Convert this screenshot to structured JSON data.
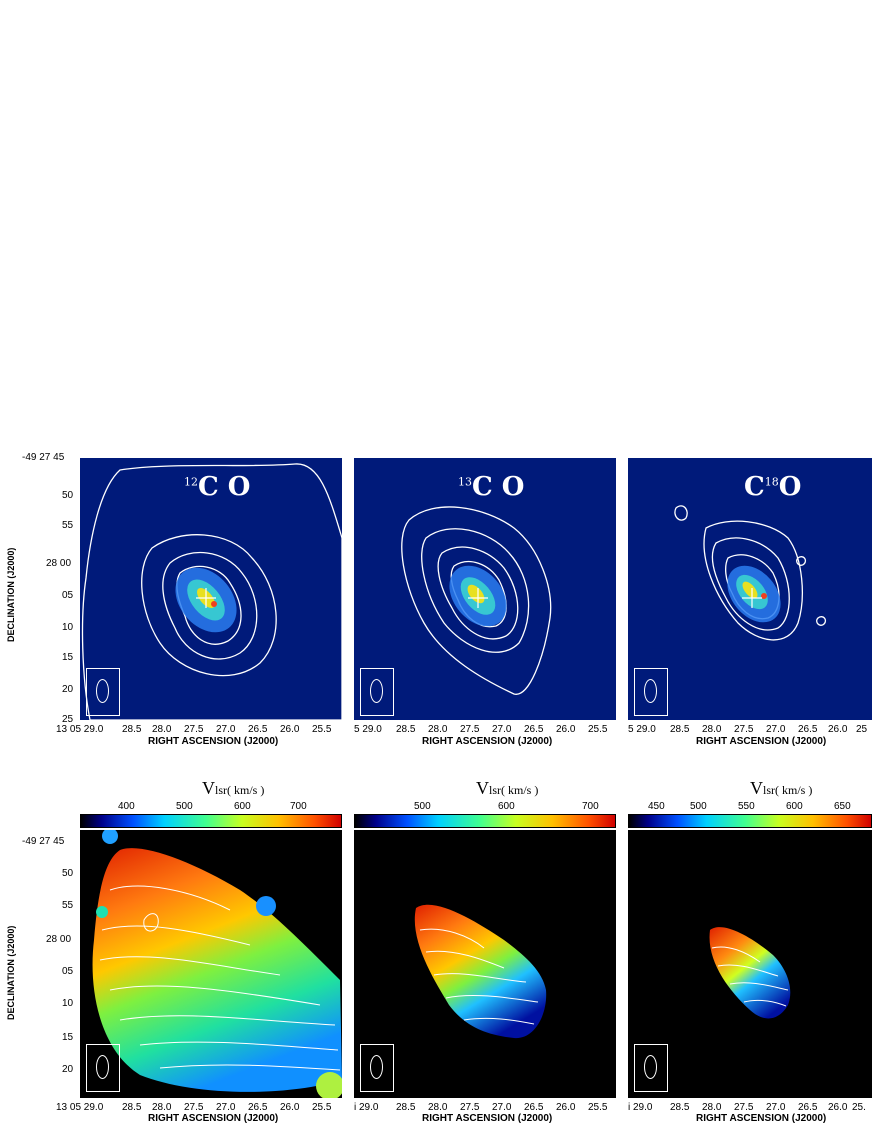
{
  "top_row": {
    "dec_labels": [
      "-49 27 45",
      "50",
      "55",
      "28 00",
      "05",
      "10",
      "15",
      "20",
      "25"
    ],
    "ylabel": "DECLINATION (J2000)",
    "xlabel": "RIGHT ASCENSION (J2000)",
    "panels": [
      {
        "sup": "12",
        "mol": "C O",
        "ra_labels": [
          "13 05 29.0",
          "28.5",
          "28.0",
          "27.5",
          "27.0",
          "26.5",
          "26.0",
          "25.5"
        ]
      },
      {
        "sup": "13",
        "mol": "C O",
        "ra_labels": [
          "5 29.0",
          "28.5",
          "28.0",
          "27.5",
          "27.0",
          "26.5",
          "26.0",
          "25.5"
        ]
      },
      {
        "sup": "18",
        "mol_pre": "C",
        "mol_post": "O",
        "ra_labels": [
          "5 29.0",
          "28.5",
          "28.0",
          "27.5",
          "27.0",
          "26.5",
          "26.0",
          "25"
        ]
      }
    ]
  },
  "bottom_row": {
    "dec_labels": [
      "-49 27 45",
      "50",
      "55",
      "28 00",
      "05",
      "10",
      "15",
      "20"
    ],
    "ylabel": "DECLINATION (J2000)",
    "xlabel": "RIGHT ASCENSION (J2000)",
    "colorbar_title": "V",
    "colorbar_sub": "lsr",
    "colorbar_unit": "( km/s )",
    "panels": [
      {
        "cb_ticks": [
          "400",
          "500",
          "600",
          "700"
        ],
        "ra_labels": [
          "13 05 29.0",
          "28.5",
          "28.0",
          "27.5",
          "27.0",
          "26.5",
          "26.0",
          "25.5"
        ]
      },
      {
        "cb_ticks": [
          "500",
          "600",
          "700"
        ],
        "ra_labels": [
          "i 29.0",
          "28.5",
          "28.0",
          "27.5",
          "27.0",
          "26.5",
          "26.0",
          "25.5"
        ]
      },
      {
        "cb_ticks": [
          "450",
          "500",
          "550",
          "600",
          "650"
        ],
        "ra_labels": [
          "i 29.0",
          "28.5",
          "28.0",
          "27.5",
          "27.0",
          "26.5",
          "26.0",
          "25."
        ]
      }
    ]
  },
  "colors": {
    "map_background": "#001a7a",
    "velocity_background": "#000000",
    "contour": "#ffffff"
  }
}
